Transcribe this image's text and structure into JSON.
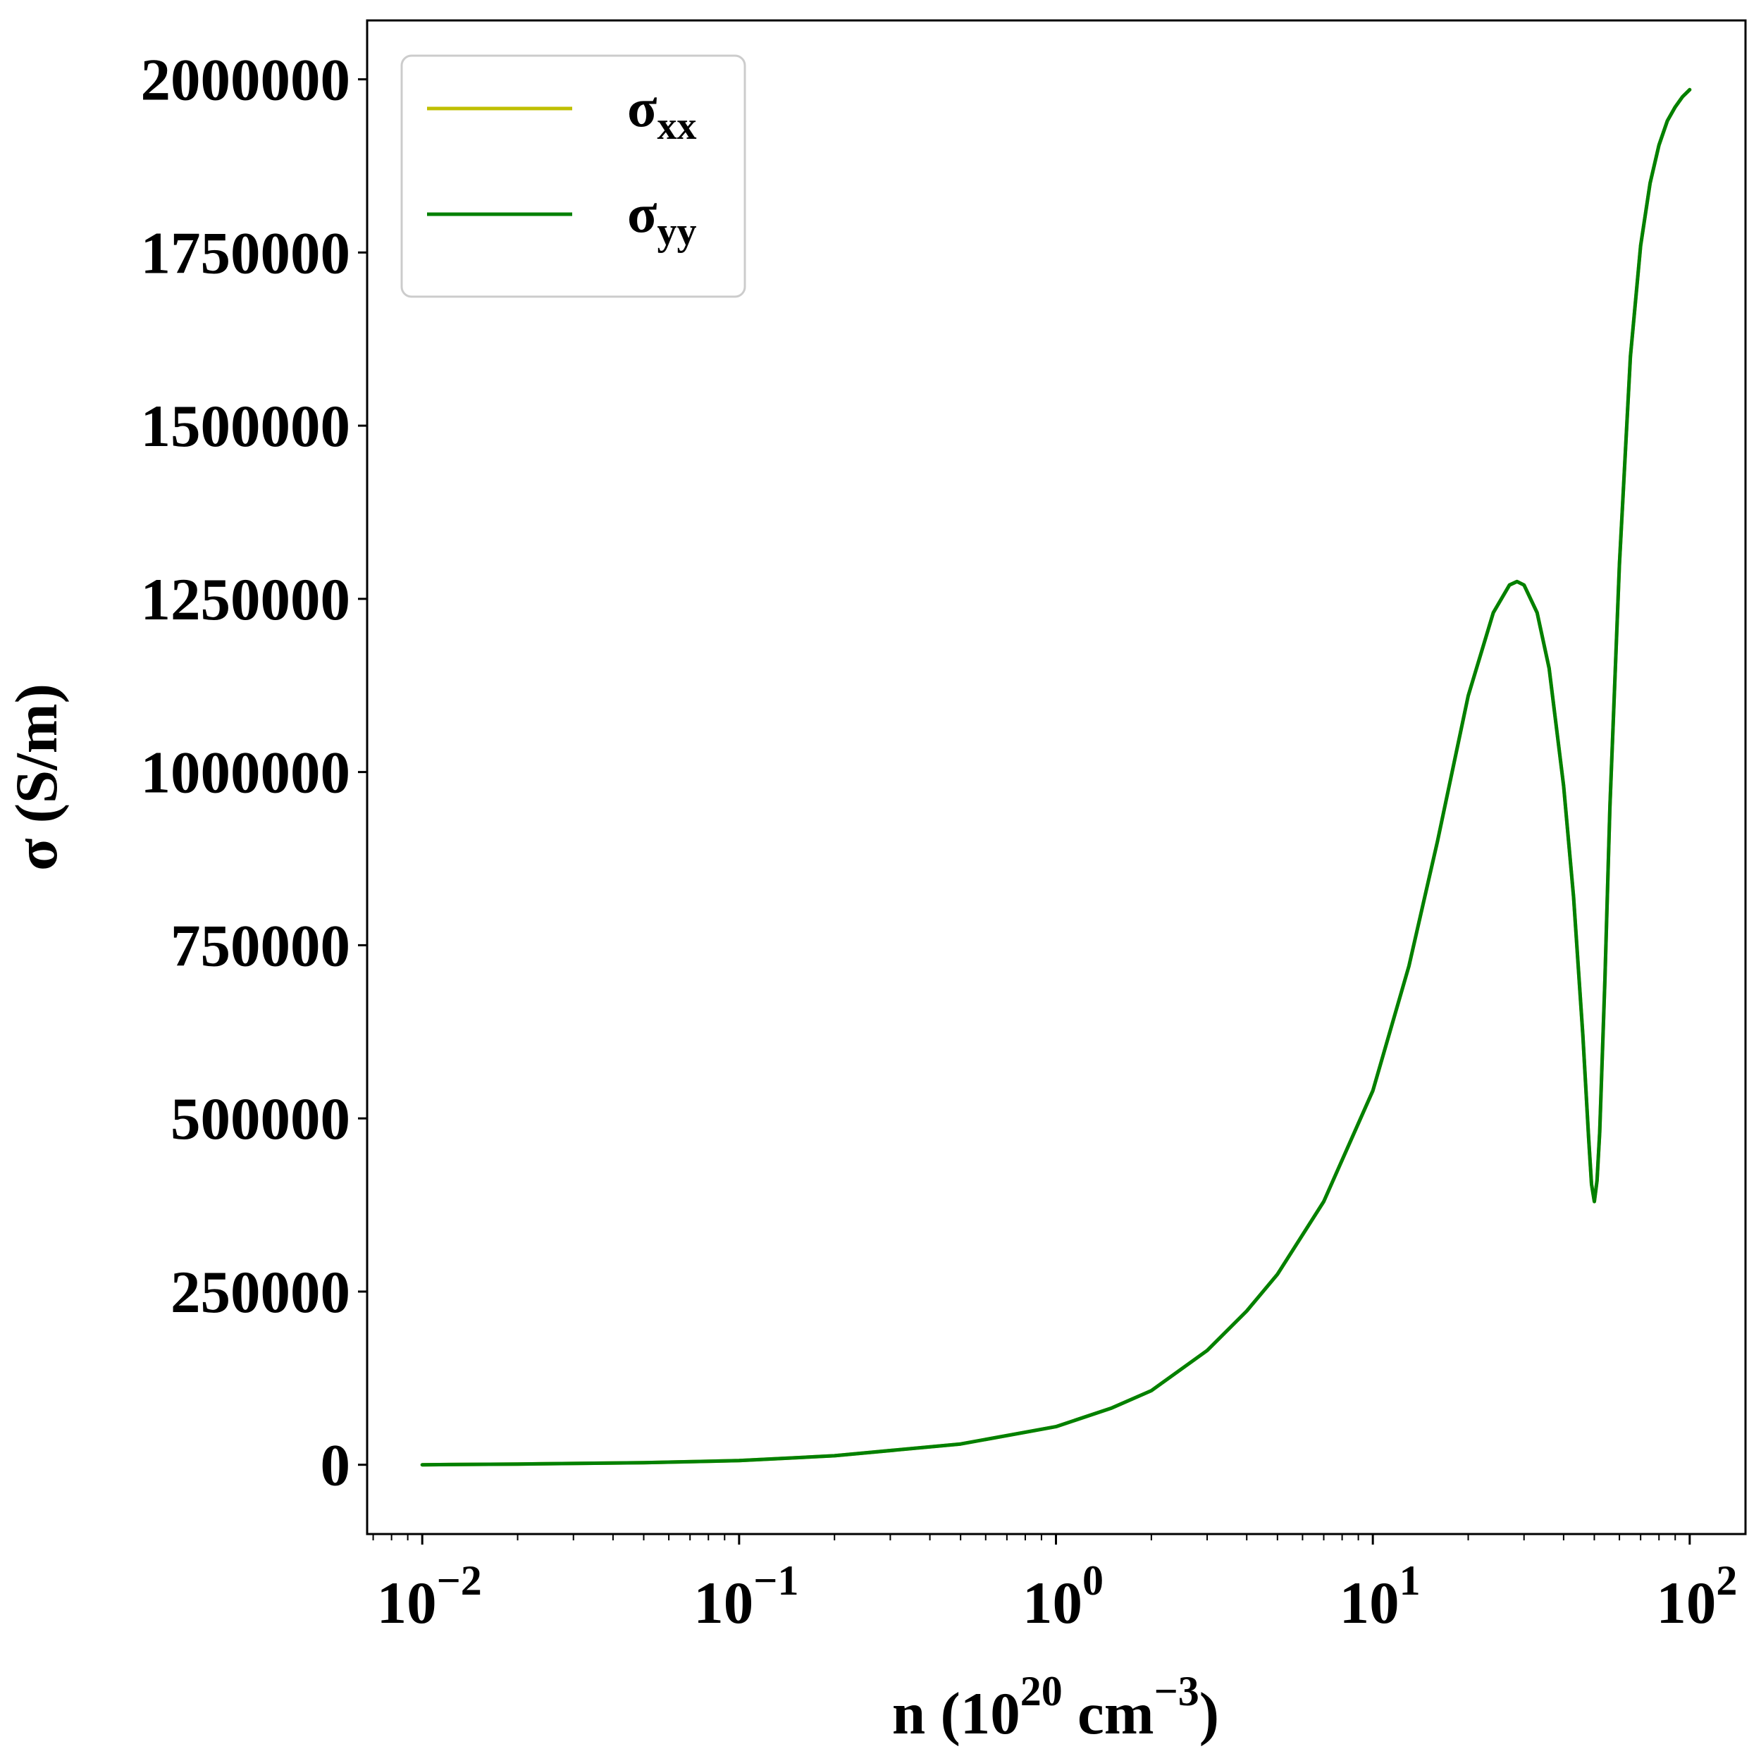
{
  "chart_data": {
    "type": "line",
    "title": "",
    "xlabel": {
      "prefix": "n (10",
      "exp1": "20",
      "middle": " cm",
      "exp2": "−3",
      "suffix": ")"
    },
    "ylabel": "σ (S/m)",
    "x_scale": "log",
    "xlim": [
      0.0067,
      150
    ],
    "ylim": [
      -100000,
      2085000
    ],
    "grid": false,
    "legend_position": "top-left",
    "x_ticks": [
      {
        "value": 0.01,
        "base": "10",
        "exp": "−2"
      },
      {
        "value": 0.1,
        "base": "10",
        "exp": "−1"
      },
      {
        "value": 1,
        "base": "10",
        "exp": "0"
      },
      {
        "value": 10,
        "base": "10",
        "exp": "1"
      },
      {
        "value": 100,
        "base": "10",
        "exp": "2"
      }
    ],
    "y_ticks": [
      {
        "value": 0,
        "label": "0"
      },
      {
        "value": 250000,
        "label": "250000"
      },
      {
        "value": 500000,
        "label": "500000"
      },
      {
        "value": 750000,
        "label": "750000"
      },
      {
        "value": 1000000,
        "label": "1000000"
      },
      {
        "value": 1250000,
        "label": "1250000"
      },
      {
        "value": 1500000,
        "label": "1500000"
      },
      {
        "value": 1750000,
        "label": "1750000"
      },
      {
        "value": 2000000,
        "label": "2000000"
      }
    ],
    "series": [
      {
        "name": "σ",
        "subscript": "xx",
        "color": "#bfbf00",
        "x": [
          0.01,
          0.02,
          0.05,
          0.1,
          0.2,
          0.5,
          1,
          1.5,
          2,
          3,
          4,
          5,
          7,
          10,
          13,
          16,
          20,
          24,
          27,
          28.5,
          30,
          33,
          36,
          40,
          43,
          46,
          48,
          49,
          50,
          51,
          52,
          54,
          56,
          60,
          65,
          70,
          75,
          80,
          85,
          90,
          95,
          100
        ],
        "y": [
          0,
          1000,
          3000,
          6000,
          13000,
          30000,
          55000,
          82000,
          107000,
          165000,
          222000,
          275000,
          380000,
          540000,
          720000,
          900000,
          1110000,
          1230000,
          1270000,
          1275000,
          1270000,
          1230000,
          1150000,
          980000,
          820000,
          620000,
          470000,
          405000,
          380000,
          410000,
          480000,
          700000,
          950000,
          1300000,
          1600000,
          1760000,
          1850000,
          1905000,
          1940000,
          1960000,
          1975000,
          1985000
        ]
      },
      {
        "name": "σ",
        "subscript": "yy",
        "color": "#008000",
        "x": [
          0.01,
          0.02,
          0.05,
          0.1,
          0.2,
          0.5,
          1,
          1.5,
          2,
          3,
          4,
          5,
          7,
          10,
          13,
          16,
          20,
          24,
          27,
          28.5,
          30,
          33,
          36,
          40,
          43,
          46,
          48,
          49,
          50,
          51,
          52,
          54,
          56,
          60,
          65,
          70,
          75,
          80,
          85,
          90,
          95,
          100
        ],
        "y": [
          0,
          1000,
          3000,
          6000,
          13000,
          30000,
          55000,
          82000,
          107000,
          165000,
          222000,
          275000,
          380000,
          540000,
          720000,
          900000,
          1110000,
          1230000,
          1270000,
          1275000,
          1270000,
          1230000,
          1150000,
          980000,
          820000,
          620000,
          470000,
          405000,
          380000,
          410000,
          480000,
          700000,
          950000,
          1300000,
          1600000,
          1760000,
          1850000,
          1905000,
          1940000,
          1960000,
          1975000,
          1985000
        ]
      }
    ]
  }
}
